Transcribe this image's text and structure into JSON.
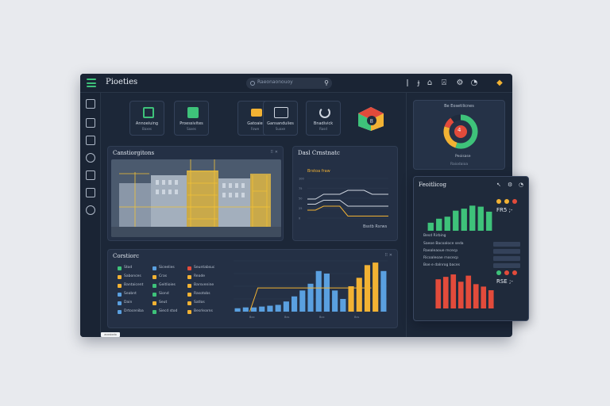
{
  "app": {
    "title": "Pioeties"
  },
  "search": {
    "placeholder": "Raeonaonouoy"
  },
  "toolbar_icons": [
    "info-icon",
    "help-icon",
    "home-icon",
    "lock-icon",
    "settings-icon",
    "notification-icon"
  ],
  "sidebar": {
    "icons": [
      "dashboard-icon",
      "grid-icon",
      "projects-icon",
      "users-icon",
      "reports-icon",
      "documents-icon",
      "clock-icon"
    ]
  },
  "tiles": [
    {
      "title": "Annoeiuing",
      "subtitle": "Baxes",
      "icon": "document-icon",
      "color": "#3ec27a"
    },
    {
      "title": "Proessivites",
      "subtitle": "Saxes",
      "icon": "file-icon",
      "color": "#3ec27a"
    },
    {
      "title": "Gatoaie",
      "subtitle": "Fowe",
      "icon": "folder-icon",
      "color": "#f2b233"
    },
    {
      "title": "Gansanduiies",
      "subtitle": "Suaxe",
      "icon": "monitor-icon",
      "color": "#cfd6e0"
    },
    {
      "title": "Bnadivick",
      "subtitle": "Rasd",
      "icon": "loading-icon",
      "color": "#cfd6e0"
    }
  ],
  "cube_icon": {
    "name": "cube-icon",
    "colors": [
      "#e24b3b",
      "#3ec27a",
      "#f2b233"
    ]
  },
  "construction_panel": {
    "title": "Canstiorgitons",
    "tools": "⠿ ✕"
  },
  "dual_panel": {
    "title": "Dasl Crnstnatc",
    "legend": "Brstoa fraw",
    "footer": "Bsstb Rsrws"
  },
  "legend_panel": {
    "title": "Corstiorc",
    "tools": "⠿ ✕",
    "items": [
      {
        "label": "Stod",
        "color": "#3ec27a"
      },
      {
        "label": "Sabonces",
        "color": "#f2b233"
      },
      {
        "label": "Bantaicent",
        "color": "#f2b233"
      },
      {
        "label": "Seabnt",
        "color": "#5aa0e0"
      },
      {
        "label": "Dain",
        "color": "#5aa0e0"
      },
      {
        "label": "Drtoceniba",
        "color": "#5aa0e0"
      },
      {
        "label": "Siceelies",
        "color": "#5aa0e0"
      },
      {
        "label": "Cras",
        "color": "#f2b233"
      },
      {
        "label": "Geitlioies",
        "color": "#3ec27a"
      },
      {
        "label": "Siond",
        "color": "#3ec27a"
      },
      {
        "label": "Seut",
        "color": "#f2b233"
      },
      {
        "label": "Siecd stod",
        "color": "#3ec27a"
      },
      {
        "label": "Seuntabsuc",
        "color": "#e24b3b"
      },
      {
        "label": "Reade",
        "color": "#f2b233"
      },
      {
        "label": "Barsvenine",
        "color": "#f2b233"
      },
      {
        "label": "Rasotobs",
        "color": "#f2b233"
      },
      {
        "label": "Satlos",
        "color": "#f2b233"
      },
      {
        "label": "Besrlearns",
        "color": "#f2b233"
      }
    ]
  },
  "donut_card": {
    "title": "Be Eosetilicnes",
    "center": "4",
    "caption": "Peoisase",
    "footer": "Raiodaioa"
  },
  "popup": {
    "title": "Feoitlicog",
    "stat1": "FR5 ;-",
    "section": "Besd Rirbing",
    "lines": [
      "Saeoe Bacoaloce seda",
      "Raealeaoue rncecp",
      "Ricoaleoae rnocecp",
      "Boe e dalnrog baces"
    ],
    "stat2": "RSE ;-"
  },
  "watermark": "acosiodo",
  "chart_data": [
    {
      "type": "line",
      "title": "Dasl Crnstnatc",
      "x": [
        0,
        1,
        2,
        3,
        4,
        5,
        6,
        7,
        8,
        9,
        10
      ],
      "series": [
        {
          "name": "Brstoa fraw",
          "values": [
            48,
            48,
            60,
            60,
            60,
            70,
            70,
            70,
            60,
            60,
            60
          ],
          "color": "#cfd6e0"
        },
        {
          "values": [
            35,
            35,
            45,
            45,
            45,
            30,
            30,
            30,
            30,
            30,
            30
          ],
          "color": "#cfd6e0"
        },
        {
          "values": [
            20,
            20,
            30,
            30,
            30,
            5,
            5,
            5,
            5,
            5,
            5
          ],
          "color": "#f2b233"
        }
      ],
      "ylim": [
        0,
        100
      ]
    },
    {
      "type": "bar",
      "title": "Corstiorc",
      "categories": [
        "Bxx",
        "Bxx",
        "Bxs",
        "Bx",
        "Bxx",
        "Bxs",
        "Bxx",
        "Bxx",
        "Bx",
        "Bxx",
        "Bxx",
        "Bx",
        "Bxx",
        "Bxs",
        "Bxx",
        "Bx",
        "Bxx",
        "Bxx",
        "Bx"
      ],
      "values": [
        4,
        5,
        5,
        6,
        7,
        8,
        12,
        18,
        25,
        33,
        48,
        45,
        25,
        15,
        30,
        40,
        55,
        58,
        48
      ],
      "colors": [
        "#5aa0e0",
        "#5aa0e0",
        "#5aa0e0",
        "#5aa0e0",
        "#5aa0e0",
        "#5aa0e0",
        "#5aa0e0",
        "#5aa0e0",
        "#5aa0e0",
        "#5aa0e0",
        "#5aa0e0",
        "#5aa0e0",
        "#5aa0e0",
        "#5aa0e0",
        "#f2b233",
        "#f2b233",
        "#f2b233",
        "#f2b233",
        "#5aa0e0"
      ],
      "xlabels": [
        "Bxx",
        "Bxs",
        "Bxx",
        "Bxs"
      ],
      "overlay_line": [
        0,
        28,
        28,
        28,
        28,
        28,
        28,
        28,
        28,
        28,
        28,
        28,
        28,
        28,
        28,
        28
      ],
      "ylim": [
        0,
        60
      ]
    },
    {
      "type": "pie",
      "title": "Be Eosetilicnes",
      "values": [
        55,
        25,
        10,
        10
      ],
      "colors": [
        "#3ec27a",
        "#f2b233",
        "#e24b3b",
        "#1f2b3d"
      ]
    },
    {
      "type": "bar",
      "title": "Feoitlicog",
      "values": [
        8,
        12,
        14,
        20,
        22,
        25,
        24,
        19
      ],
      "color": "#3ec27a",
      "ylim": [
        0,
        30
      ]
    },
    {
      "type": "bar",
      "title": "Besd Rirbing",
      "values": [
        24,
        26,
        28,
        22,
        27,
        20,
        18,
        15
      ],
      "color": "#e24b3b",
      "ylim": [
        0,
        30
      ]
    }
  ]
}
